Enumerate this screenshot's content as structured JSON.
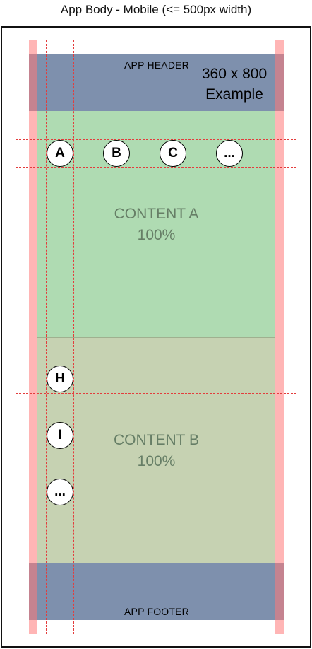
{
  "title": "App Body - Mobile (<= 500px width)",
  "header": {
    "label": "APP HEADER",
    "size_line1": "360 x 800",
    "size_line2": "Example"
  },
  "content_a": {
    "line1": "CONTENT A",
    "line2": "100%",
    "circles": [
      "A",
      "B",
      "C",
      "..."
    ]
  },
  "content_b": {
    "line1": "CONTENT B",
    "line2": "100%",
    "circles": [
      "H",
      "I",
      "..."
    ]
  },
  "footer": {
    "label": "APP FOOTER"
  },
  "colors": {
    "header_footer": "#7e90ad",
    "content_a": "#afdbb2",
    "content_b": "#c6d2b2",
    "margin": "#ff7878",
    "guide": "#e33c3c"
  }
}
